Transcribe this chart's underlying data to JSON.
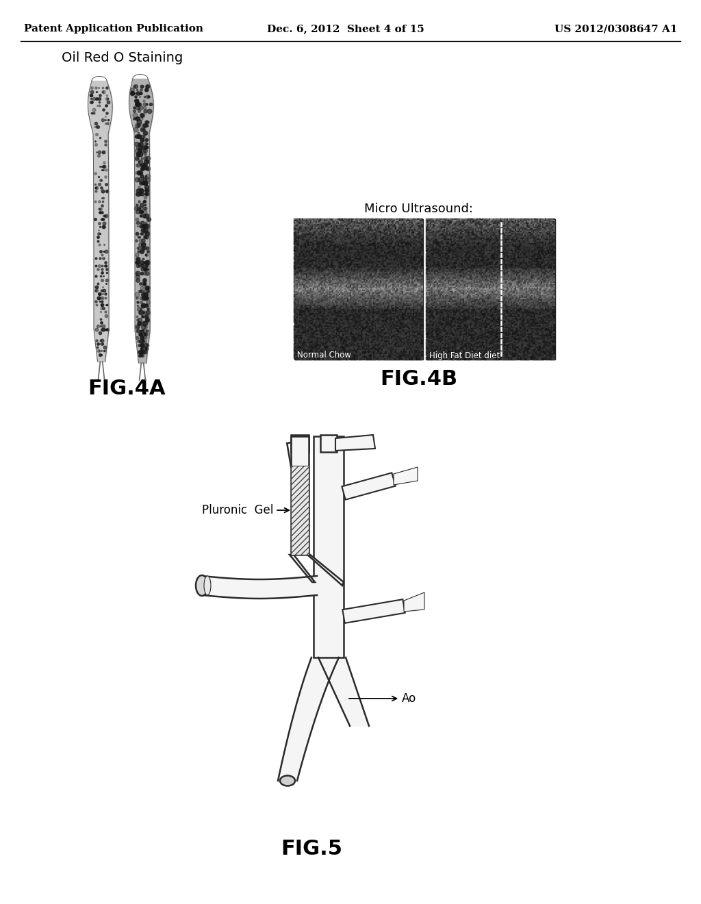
{
  "header_left": "Patent Application Publication",
  "header_mid": "Dec. 6, 2012  Sheet 4 of 15",
  "header_right": "US 2012/0308647 A1",
  "fig4a_label": "FIG.4A",
  "fig4b_label": "FIG.4B",
  "fig5_label": "FIG.5",
  "oil_red_label": "Oil Red O Staining",
  "micro_us_label": "Micro Ultrasound:",
  "normal_chow_label": "Normal Chow",
  "high_fat_label": "High Fat Diet diet",
  "pluronic_gel_label": "Pluronic  Gel",
  "ao_label": "Ao",
  "bg_color": "#ffffff",
  "text_color": "#000000",
  "line_color": "#222222"
}
